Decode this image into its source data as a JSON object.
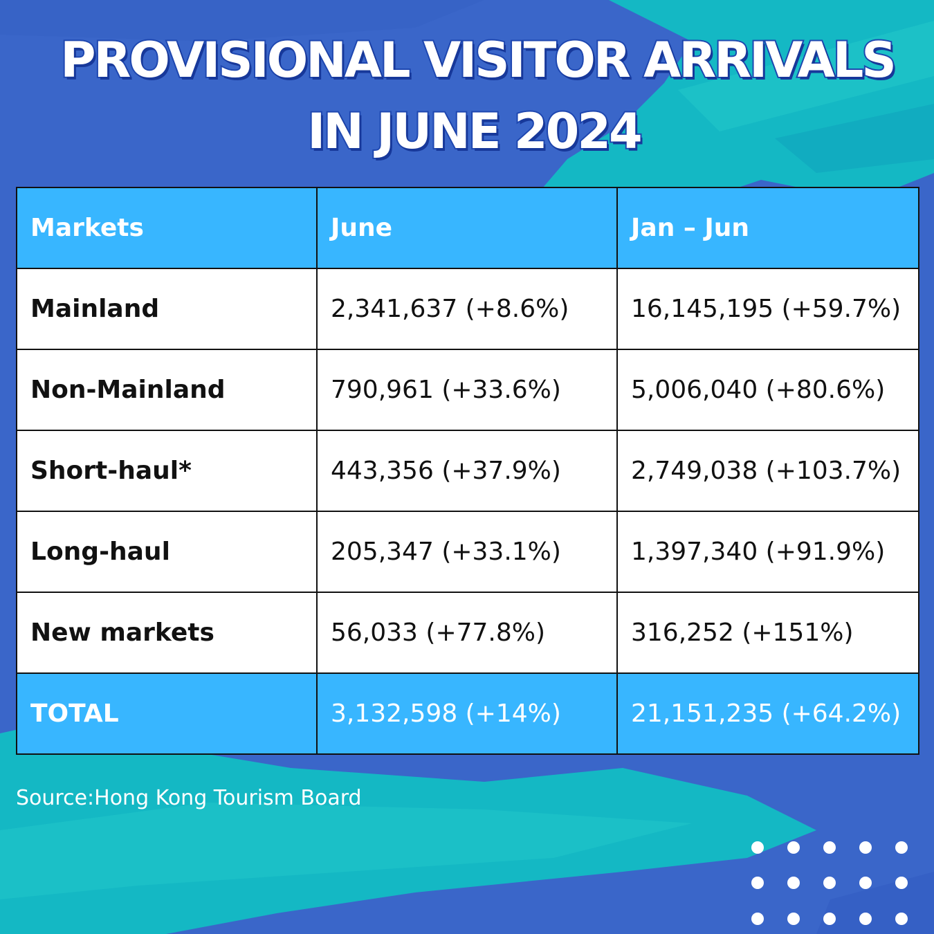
{
  "title": {
    "line1": "PROVISIONAL VISITOR ARRIVALS",
    "line2": "IN JUNE 2024"
  },
  "table": {
    "headers": [
      "Markets",
      "June",
      "Jan – Jun"
    ],
    "rows": [
      {
        "market": "Mainland",
        "june": "2,341,637 (+8.6%)",
        "jan_jun": "16,145,195 (+59.7%)"
      },
      {
        "market": "Non-Mainland",
        "june": "790,961 (+33.6%)",
        "jan_jun": "5,006,040 (+80.6%)"
      },
      {
        "market": "Short-haul*",
        "june": "443,356 (+37.9%)",
        "jan_jun": "2,749,038 (+103.7%)"
      },
      {
        "market": "Long-haul",
        "june": "205,347 (+33.1%)",
        "jan_jun": "1,397,340 (+91.9%)"
      },
      {
        "market": "New markets",
        "june": "56,033 (+77.8%)",
        "jan_jun": "316,252 (+151%)"
      }
    ],
    "total": {
      "market": "TOTAL",
      "june": "3,132,598 (+14%)",
      "jan_jun": "21,151,235 (+64.2%)"
    }
  },
  "source": "Source:Hong Kong Tourism Board",
  "colors": {
    "background": "#3a66c9",
    "teal_brush": "#14b8c4",
    "header_fill": "#38b6ff",
    "title_text": "#ffffff",
    "title_outline": "#1e47b0"
  }
}
